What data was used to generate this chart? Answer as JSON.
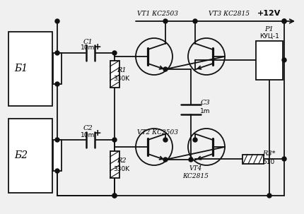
{
  "bg_color": "#f0f0f0",
  "line_color": "#111111",
  "lw": 1.3,
  "labels": {
    "B1": "Б1",
    "B2": "Б2",
    "VT1": "VT1 КС2503",
    "VT2": "VT2 КС2503",
    "VT3": "VT3 КС2815",
    "VT4": "VT4\nКС2815",
    "C1": "C1\n10m",
    "C2": "C2\n10m",
    "C3": "C3\n1m",
    "R1": "R1\n330K",
    "R2": "R2\n330K",
    "R3": "R3*\n510",
    "P1": "P1\nКУЦ-1",
    "power": "+12V"
  }
}
